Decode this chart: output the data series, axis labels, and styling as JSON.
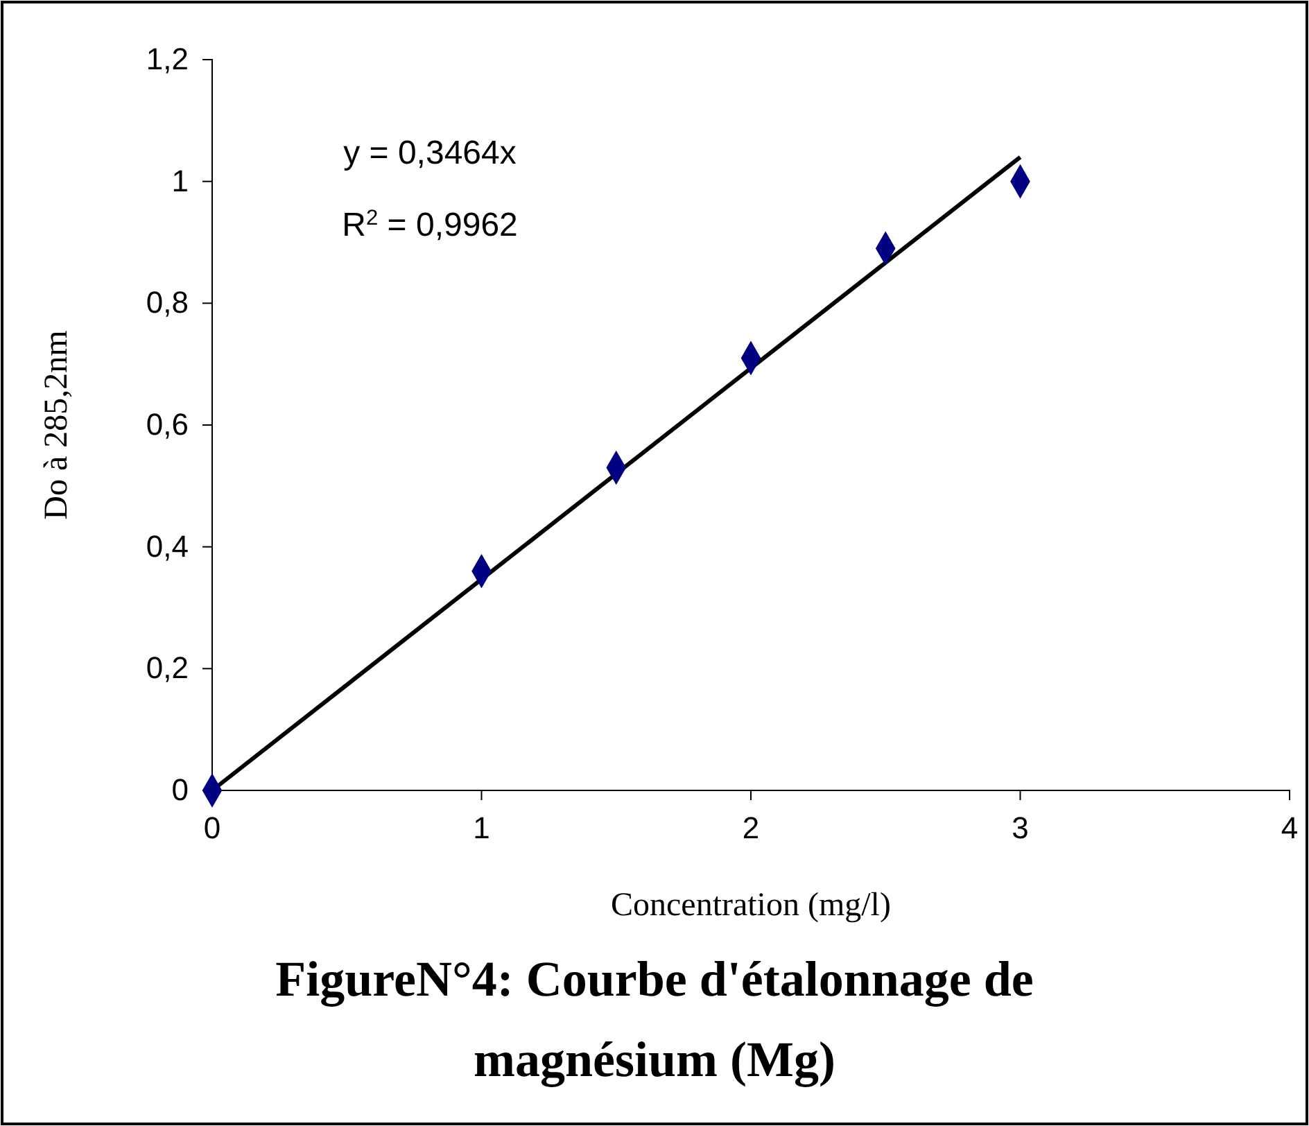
{
  "chart_data": {
    "type": "scatter",
    "title": "FigureN°4: Courbe d'étalonnage de magnésium (Mg)",
    "xlabel": "Concentration (mg/l)",
    "ylabel": "Do à 285,2nm",
    "annotations": [
      "y = 0,3464x",
      "R$^{2}$ = 0,9962"
    ],
    "xlim": [
      0,
      4
    ],
    "xticks": [
      0,
      1,
      2,
      3,
      4
    ],
    "ylim": [
      0,
      1.2
    ],
    "yticks": [
      0,
      {
        "value": 0.2,
        "label": "0,2"
      },
      {
        "value": 0.4,
        "label": "0,4"
      },
      {
        "value": 0.6,
        "label": "0,6"
      },
      {
        "value": 0.8,
        "label": "0,8"
      },
      1,
      {
        "value": 1.2,
        "label": "1,2"
      }
    ],
    "series": [
      {
        "type": "scatter",
        "color": "#000080",
        "marker": "diamond",
        "x": [
          0,
          1,
          1.5,
          2,
          2.5,
          3
        ],
        "values": [
          0,
          0.36,
          0.53,
          0.71,
          0.89,
          1.0
        ]
      },
      {
        "type": "line",
        "color": "#000000",
        "marker": "none",
        "x": [
          0,
          3
        ],
        "values": [
          0,
          1.04
        ]
      }
    ]
  }
}
